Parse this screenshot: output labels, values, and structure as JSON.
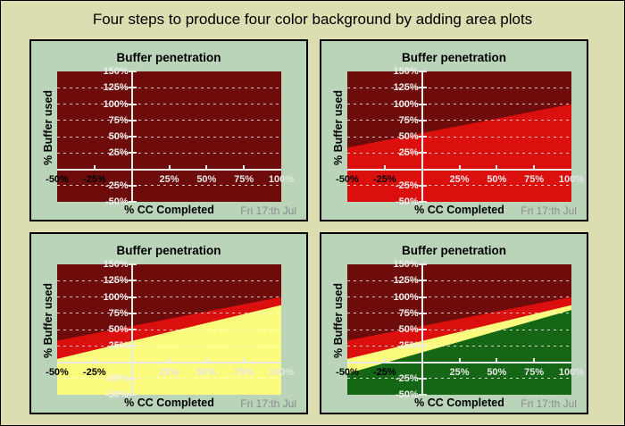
{
  "figure": {
    "title": "Four steps to produce four color background by adding area plots"
  },
  "colors": {
    "page_bg": "#DDDDB2",
    "panel_bg": "#B9D4B9",
    "panel_border": "#000000",
    "dark_red": "#6E0B0B",
    "red": "#DC0F0F",
    "yellow": "#FBFB7D",
    "green": "#156615",
    "axis": "#E9E9E9",
    "grid_dash": "rgba(255,255,255,0.78)",
    "tick_label_light": "#EFEFEF",
    "tick_label_dark": "#000000",
    "date_text": "#8A8A8A"
  },
  "chart_data": [
    {
      "type": "area",
      "title": "Buffer penetration",
      "xlabel": "% CC Completed",
      "ylabel": "% Buffer used",
      "footer": "Fri 17:th Jul",
      "xlim": [
        -50,
        100
      ],
      "ylim": [
        -50,
        150
      ],
      "grid": "horizontal dashed",
      "legend_position": "none",
      "xticks": [
        {
          "v": -50,
          "label": "-50%",
          "dark": true
        },
        {
          "v": -25,
          "label": "-25%",
          "dark": true
        },
        {
          "v": 25,
          "label": "25%",
          "dark": false
        },
        {
          "v": 50,
          "label": "50%",
          "dark": false
        },
        {
          "v": 75,
          "label": "75%",
          "dark": false
        },
        {
          "v": 100,
          "label": "100%",
          "dark": false
        }
      ],
      "yticks": [
        {
          "v": 150,
          "label": "150%"
        },
        {
          "v": 125,
          "label": "125%"
        },
        {
          "v": 100,
          "label": "100%"
        },
        {
          "v": 75,
          "label": "75%"
        },
        {
          "v": 50,
          "label": "50%"
        },
        {
          "v": 25,
          "label": "25%"
        },
        {
          "v": -25,
          "label": "-25%"
        },
        {
          "v": -50,
          "label": "-50%"
        }
      ],
      "background": "dark_red",
      "areas": []
    },
    {
      "type": "area",
      "title": "Buffer penetration",
      "xlabel": "% CC Completed",
      "ylabel": "% Buffer used",
      "footer": "Fri 17:th Jul",
      "xlim": [
        -50,
        100
      ],
      "ylim": [
        -50,
        150
      ],
      "grid": "horizontal dashed",
      "legend_position": "none",
      "xticks": [
        {
          "v": -50,
          "label": "-50%",
          "dark": true
        },
        {
          "v": -25,
          "label": "-25%",
          "dark": true
        },
        {
          "v": 25,
          "label": "25%",
          "dark": false
        },
        {
          "v": 50,
          "label": "50%",
          "dark": false
        },
        {
          "v": 75,
          "label": "75%",
          "dark": false
        },
        {
          "v": 100,
          "label": "100%",
          "dark": false
        }
      ],
      "yticks": [
        {
          "v": 150,
          "label": "150%"
        },
        {
          "v": 125,
          "label": "125%"
        },
        {
          "v": 100,
          "label": "100%"
        },
        {
          "v": 75,
          "label": "75%"
        },
        {
          "v": 50,
          "label": "50%"
        },
        {
          "v": 25,
          "label": "25%"
        },
        {
          "v": -25,
          "label": "-25%"
        },
        {
          "v": -50,
          "label": "-50%"
        }
      ],
      "background": "dark_red",
      "areas": [
        {
          "color": "red",
          "line": [
            [
              -50,
              33
            ],
            [
              100,
              100
            ]
          ]
        }
      ]
    },
    {
      "type": "area",
      "title": "Buffer penetration",
      "xlabel": "% CC Completed",
      "ylabel": "% Buffer used",
      "footer": "Fri 17:th Jul",
      "xlim": [
        -50,
        100
      ],
      "ylim": [
        -50,
        150
      ],
      "grid": "horizontal dashed",
      "legend_position": "none",
      "xticks": [
        {
          "v": -50,
          "label": "-50%",
          "dark": true
        },
        {
          "v": -25,
          "label": "-25%",
          "dark": true
        },
        {
          "v": 25,
          "label": "25%",
          "dark": false
        },
        {
          "v": 50,
          "label": "50%",
          "dark": false
        },
        {
          "v": 75,
          "label": "75%",
          "dark": false
        },
        {
          "v": 100,
          "label": "100%",
          "dark": false
        }
      ],
      "yticks": [
        {
          "v": 150,
          "label": "150%"
        },
        {
          "v": 125,
          "label": "125%"
        },
        {
          "v": 100,
          "label": "100%"
        },
        {
          "v": 75,
          "label": "75%"
        },
        {
          "v": 50,
          "label": "50%"
        },
        {
          "v": 25,
          "label": "25%"
        },
        {
          "v": -25,
          "label": "-25%"
        },
        {
          "v": -50,
          "label": "-50%"
        }
      ],
      "background": "dark_red",
      "areas": [
        {
          "color": "red",
          "line": [
            [
              -50,
              33
            ],
            [
              100,
              100
            ]
          ]
        },
        {
          "color": "yellow",
          "line": [
            [
              -50,
              5
            ],
            [
              100,
              87.5
            ]
          ]
        }
      ]
    },
    {
      "type": "area",
      "title": "Buffer penetration",
      "xlabel": "% CC Completed",
      "ylabel": "% Buffer used",
      "footer": "Fri 17:th Jul",
      "xlim": [
        -50,
        100
      ],
      "ylim": [
        -50,
        150
      ],
      "grid": "horizontal dashed",
      "legend_position": "none",
      "xticks": [
        {
          "v": -50,
          "label": "-50%",
          "dark": true
        },
        {
          "v": -25,
          "label": "-25%",
          "dark": true
        },
        {
          "v": 25,
          "label": "25%",
          "dark": false
        },
        {
          "v": 50,
          "label": "50%",
          "dark": false
        },
        {
          "v": 75,
          "label": "75%",
          "dark": false
        },
        {
          "v": 100,
          "label": "100%",
          "dark": false
        }
      ],
      "yticks": [
        {
          "v": 150,
          "label": "150%"
        },
        {
          "v": 125,
          "label": "125%"
        },
        {
          "v": 100,
          "label": "100%"
        },
        {
          "v": 75,
          "label": "75%"
        },
        {
          "v": 50,
          "label": "50%"
        },
        {
          "v": 25,
          "label": "25%"
        },
        {
          "v": -25,
          "label": "-25%"
        },
        {
          "v": -50,
          "label": "-50%"
        }
      ],
      "background": "dark_red",
      "areas": [
        {
          "color": "red",
          "line": [
            [
              -50,
              33
            ],
            [
              100,
              100
            ]
          ]
        },
        {
          "color": "yellow",
          "line": [
            [
              -50,
              5
            ],
            [
              100,
              87.5
            ]
          ]
        },
        {
          "color": "green",
          "line": [
            [
              -50,
              -17.5
            ],
            [
              100,
              80
            ]
          ]
        }
      ]
    }
  ]
}
